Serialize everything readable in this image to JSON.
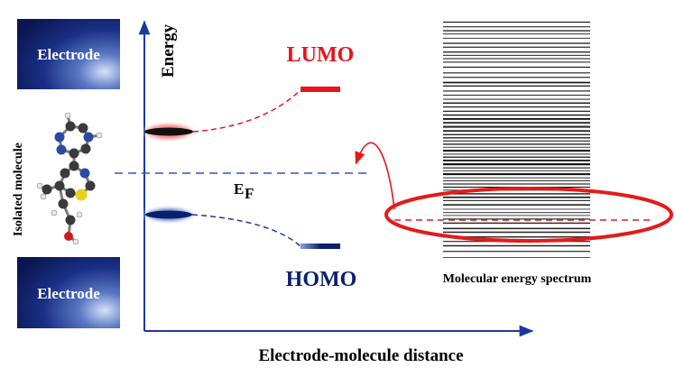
{
  "diagram": {
    "electrode_top_label": "Electrode",
    "electrode_bottom_label": "Electrode",
    "side_label": "Isolated molecule",
    "y_axis_label": "Energy",
    "x_axis_label": "Electrode-molecule distance",
    "lumo_label": "LUMO",
    "homo_label": "HOMO",
    "fermi_label": "E",
    "fermi_subscript": "F",
    "spectrum_label": "Molecular energy spectrum",
    "colors": {
      "lumo": "#e8141a",
      "homo": "#0a1f6e",
      "axis": "#1c3a9e",
      "fermi_line": "#2c55c9",
      "highlight": "#e31b1b",
      "electrode_dark": "#0b1a5a",
      "electrode_light": "#c8d6f2"
    }
  }
}
